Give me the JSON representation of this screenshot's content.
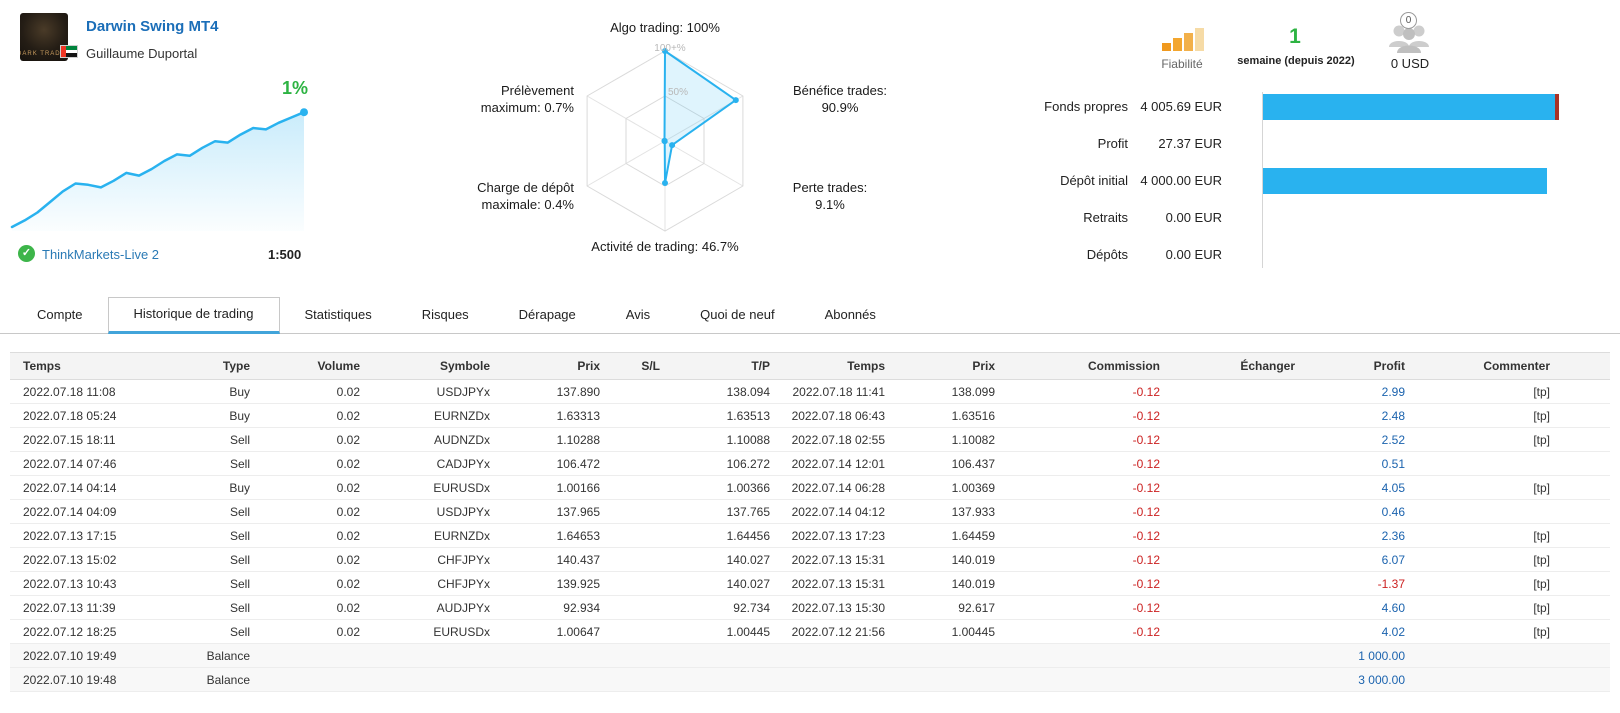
{
  "header": {
    "title": "Darwin Swing MT4",
    "author": "Guillaume Duportal",
    "avatar_caption": "DARK TRADER",
    "account": "ThinkMarkets-Live 2",
    "leverage": "1:500"
  },
  "growth": {
    "label": "1%",
    "series": [
      3,
      8,
      14,
      22,
      30,
      36,
      35,
      33,
      38,
      44,
      42,
      47,
      53,
      58,
      57,
      63,
      68,
      67,
      73,
      78,
      77,
      82,
      86,
      90
    ]
  },
  "radar": {
    "axes": [
      {
        "label": "Algo trading: 100%",
        "value": 100
      },
      {
        "label": "Bénéfice trades: 90.9%",
        "value": 90.9
      },
      {
        "label": "Perte trades: 9.1%",
        "value": 9.1
      },
      {
        "label": "Activité de trading: 46.7%",
        "value": 46.7
      },
      {
        "label": "Charge de dépôt maximale: 0.4%",
        "value": 0.4
      },
      {
        "label": "Prélèvement maximum: 0.7%",
        "value": 0.7
      }
    ],
    "rings": [
      "50%",
      "100+%"
    ]
  },
  "reliability": {
    "label": "Fiabilité",
    "weeks_value": "1",
    "weeks_label": "semaine (depuis 2022)",
    "subscribers_count": "0",
    "price": "0 USD"
  },
  "stats": {
    "rows": [
      {
        "label": "Fonds propres",
        "value": "4 005.69 EUR",
        "bar_pct": 100,
        "bar_tip": true
      },
      {
        "label": "Profit",
        "value": "27.37 EUR",
        "bar_pct": 0,
        "bar_tip": false
      },
      {
        "label": "Dépôt initial",
        "value": "4 000.00 EUR",
        "bar_pct": 96,
        "bar_tip": false
      },
      {
        "label": "Retraits",
        "value": "0.00 EUR",
        "bar_pct": 0,
        "bar_tip": false
      },
      {
        "label": "Dépôts",
        "value": "0.00 EUR",
        "bar_pct": 0,
        "bar_tip": false
      }
    ]
  },
  "tabs": {
    "items": [
      {
        "label": "Compte",
        "active": false
      },
      {
        "label": "Historique de trading",
        "active": true
      },
      {
        "label": "Statistiques",
        "active": false
      },
      {
        "label": "Risques",
        "active": false
      },
      {
        "label": "Dérapage",
        "active": false
      },
      {
        "label": "Avis",
        "active": false
      },
      {
        "label": "Quoi de neuf",
        "active": false
      },
      {
        "label": "Abonnés",
        "active": false
      }
    ]
  },
  "table": {
    "headers": [
      "Temps",
      "Type",
      "Volume",
      "Symbole",
      "Prix",
      "S/L",
      "T/P",
      "Temps",
      "Prix",
      "Commission",
      "Échanger",
      "Profit",
      "Commenter"
    ],
    "rows": [
      {
        "cells": [
          "2022.07.18 11:08",
          "Buy",
          "0.02",
          "USDJPYx",
          "137.890",
          "",
          "138.094",
          "2022.07.18 11:41",
          "138.099",
          "-0.12",
          "",
          "2.99",
          "[tp]"
        ]
      },
      {
        "cells": [
          "2022.07.18 05:24",
          "Buy",
          "0.02",
          "EURNZDx",
          "1.63313",
          "",
          "1.63513",
          "2022.07.18 06:43",
          "1.63516",
          "-0.12",
          "",
          "2.48",
          "[tp]"
        ]
      },
      {
        "cells": [
          "2022.07.15 18:11",
          "Sell",
          "0.02",
          "AUDNZDx",
          "1.10288",
          "",
          "1.10088",
          "2022.07.18 02:55",
          "1.10082",
          "-0.12",
          "",
          "2.52",
          "[tp]"
        ]
      },
      {
        "cells": [
          "2022.07.14 07:46",
          "Sell",
          "0.02",
          "CADJPYx",
          "106.472",
          "",
          "106.272",
          "2022.07.14 12:01",
          "106.437",
          "-0.12",
          "",
          "0.51",
          ""
        ]
      },
      {
        "cells": [
          "2022.07.14 04:14",
          "Buy",
          "0.02",
          "EURUSDx",
          "1.00166",
          "",
          "1.00366",
          "2022.07.14 06:28",
          "1.00369",
          "-0.12",
          "",
          "4.05",
          "[tp]"
        ]
      },
      {
        "cells": [
          "2022.07.14 04:09",
          "Sell",
          "0.02",
          "USDJPYx",
          "137.965",
          "",
          "137.765",
          "2022.07.14 04:12",
          "137.933",
          "-0.12",
          "",
          "0.46",
          ""
        ]
      },
      {
        "cells": [
          "2022.07.13 17:15",
          "Sell",
          "0.02",
          "EURNZDx",
          "1.64653",
          "",
          "1.64456",
          "2022.07.13 17:23",
          "1.64459",
          "-0.12",
          "",
          "2.36",
          "[tp]"
        ]
      },
      {
        "cells": [
          "2022.07.13 15:02",
          "Sell",
          "0.02",
          "CHFJPYx",
          "140.437",
          "",
          "140.027",
          "2022.07.13 15:31",
          "140.019",
          "-0.12",
          "",
          "6.07",
          "[tp]"
        ]
      },
      {
        "cells": [
          "2022.07.13 10:43",
          "Sell",
          "0.02",
          "CHFJPYx",
          "139.925",
          "",
          "140.027",
          "2022.07.13 15:31",
          "140.019",
          "-0.12",
          "",
          "-1.37",
          "[tp]"
        ]
      },
      {
        "cells": [
          "2022.07.13 11:39",
          "Sell",
          "0.02",
          "AUDJPYx",
          "92.934",
          "",
          "92.734",
          "2022.07.13 15:30",
          "92.617",
          "-0.12",
          "",
          "4.60",
          "[tp]"
        ]
      },
      {
        "cells": [
          "2022.07.12 18:25",
          "Sell",
          "0.02",
          "EURUSDx",
          "1.00647",
          "",
          "1.00445",
          "2022.07.12 21:56",
          "1.00445",
          "-0.12",
          "",
          "4.02",
          "[tp]"
        ]
      },
      {
        "cells": [
          "2022.07.10 19:49",
          "Balance",
          "",
          "",
          "",
          "",
          "",
          "",
          "",
          "",
          "",
          "1 000.00",
          ""
        ]
      },
      {
        "cells": [
          "2022.07.10 19:48",
          "Balance",
          "",
          "",
          "",
          "",
          "",
          "",
          "",
          "",
          "",
          "3 000.00",
          ""
        ]
      }
    ]
  },
  "colors": {
    "accent": "#29b2ef",
    "link": "#1b6eb8",
    "green": "#2db342",
    "red": "#cc2222",
    "profit_blue": "#1b63ae",
    "bar_tip": "#a93226"
  }
}
